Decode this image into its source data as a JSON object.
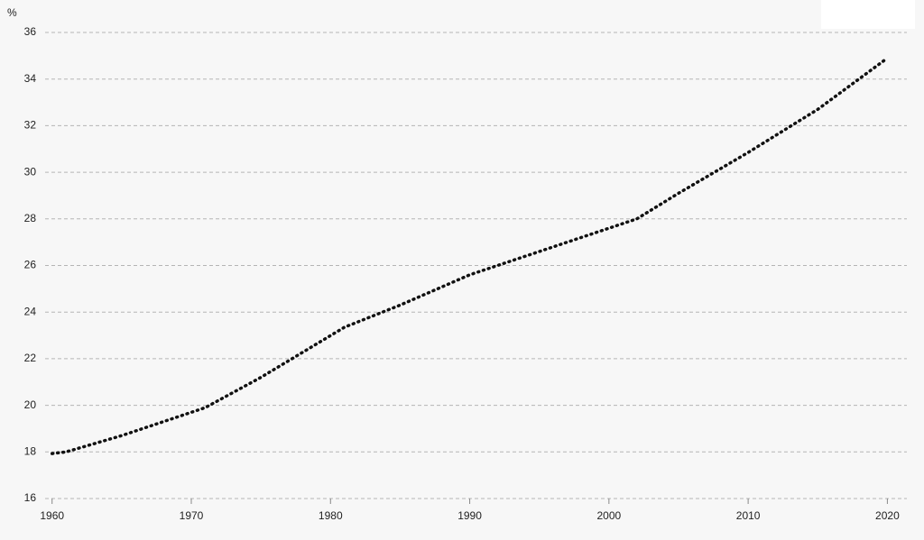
{
  "chart_data": {
    "type": "line",
    "y_label": "%",
    "x": [
      1960,
      1961,
      1965,
      1971,
      1975,
      1981,
      1985,
      1990,
      1995,
      2000,
      2002,
      2005,
      2010,
      2015,
      2020
    ],
    "series": [
      {
        "color": "#111111",
        "values": [
          17.93,
          18.0,
          18.7,
          19.9,
          21.2,
          23.35,
          24.3,
          25.6,
          26.6,
          27.6,
          28.0,
          29.1,
          30.85,
          32.7,
          34.9
        ]
      }
    ],
    "xlim": [
      1959.5,
      2021.4
    ],
    "xticks": [
      1960,
      1970,
      1980,
      1990,
      2000,
      2010,
      2020
    ],
    "ylim": [
      16,
      36
    ],
    "yticks": [
      16,
      18,
      20,
      22,
      24,
      26,
      28,
      30,
      32,
      34,
      36
    ],
    "grid": true
  }
}
